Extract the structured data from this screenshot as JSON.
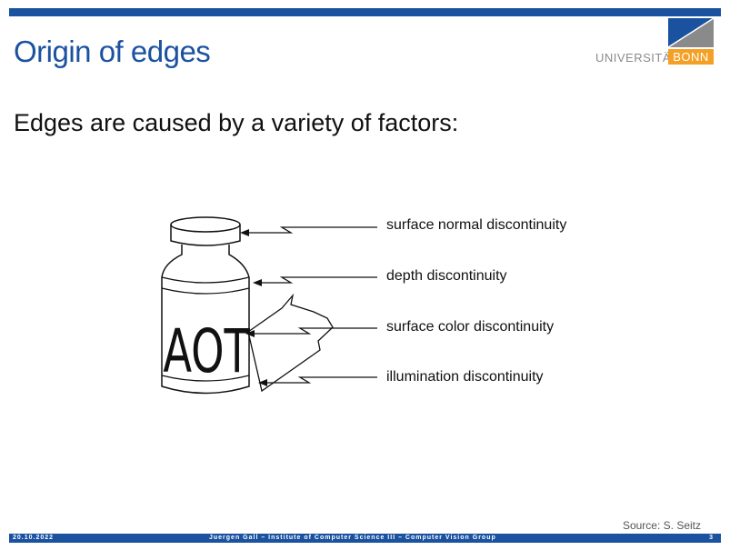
{
  "slide": {
    "title": "Origin of edges",
    "lead": "Edges are caused by a variety of factors:",
    "source": "Source: S. Seitz"
  },
  "logo": {
    "word_a": "UNIVERSITÄT",
    "word_b": "BONN",
    "colors": {
      "blue": "#1a52a0",
      "orange": "#f4a024",
      "gray": "#8a8a8a"
    }
  },
  "figure": {
    "bottle_text": "AOT",
    "labels": [
      "surface normal discontinuity",
      "depth discontinuity",
      "surface color discontinuity",
      "illumination discontinuity"
    ]
  },
  "footer": {
    "date": "20.10.2022",
    "center": "Juergen  Gall  –  Institute  of  Computer  Science  III  –  Computer  Vision  Group",
    "page": "3"
  },
  "theme": {
    "accent": "#1a52a0"
  }
}
